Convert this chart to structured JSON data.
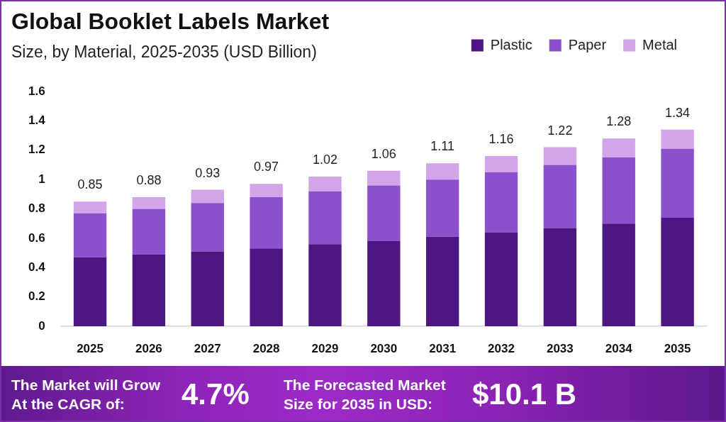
{
  "chart_data": {
    "type": "bar",
    "title": "Global Booklet Labels Market",
    "subtitle": "Size, by Material, 2025-2035 (USD Billion)",
    "categories": [
      "2025",
      "2026",
      "2027",
      "2028",
      "2029",
      "2030",
      "2031",
      "2032",
      "2033",
      "2034",
      "2035"
    ],
    "series": [
      {
        "name": "Plastic",
        "color": "#4e1681",
        "values": [
          0.47,
          0.49,
          0.51,
          0.53,
          0.56,
          0.58,
          0.61,
          0.64,
          0.67,
          0.7,
          0.74
        ]
      },
      {
        "name": "Paper",
        "color": "#8c50cc",
        "values": [
          0.3,
          0.31,
          0.33,
          0.35,
          0.36,
          0.38,
          0.39,
          0.41,
          0.43,
          0.45,
          0.47
        ]
      },
      {
        "name": "Metal",
        "color": "#d1a5e8",
        "values": [
          0.08,
          0.08,
          0.09,
          0.09,
          0.1,
          0.1,
          0.11,
          0.11,
          0.12,
          0.13,
          0.13
        ]
      }
    ],
    "stacked": true,
    "ylim": [
      0,
      1.6
    ],
    "yticks": [
      0,
      0.2,
      0.4,
      0.6,
      0.8,
      1,
      1.2,
      1.4,
      1.6
    ],
    "totals": [
      "0.85",
      "0.88",
      "0.93",
      "0.97",
      "1.02",
      "1.06",
      "1.11",
      "1.16",
      "1.22",
      "1.28",
      "1.34"
    ],
    "legend": "top right",
    "annotations": [
      "The Market will Grow At the CAGR of:",
      "4.7%",
      "The Forecasted Market Size for 2035 in USD:",
      "$10.1 B"
    ]
  }
}
